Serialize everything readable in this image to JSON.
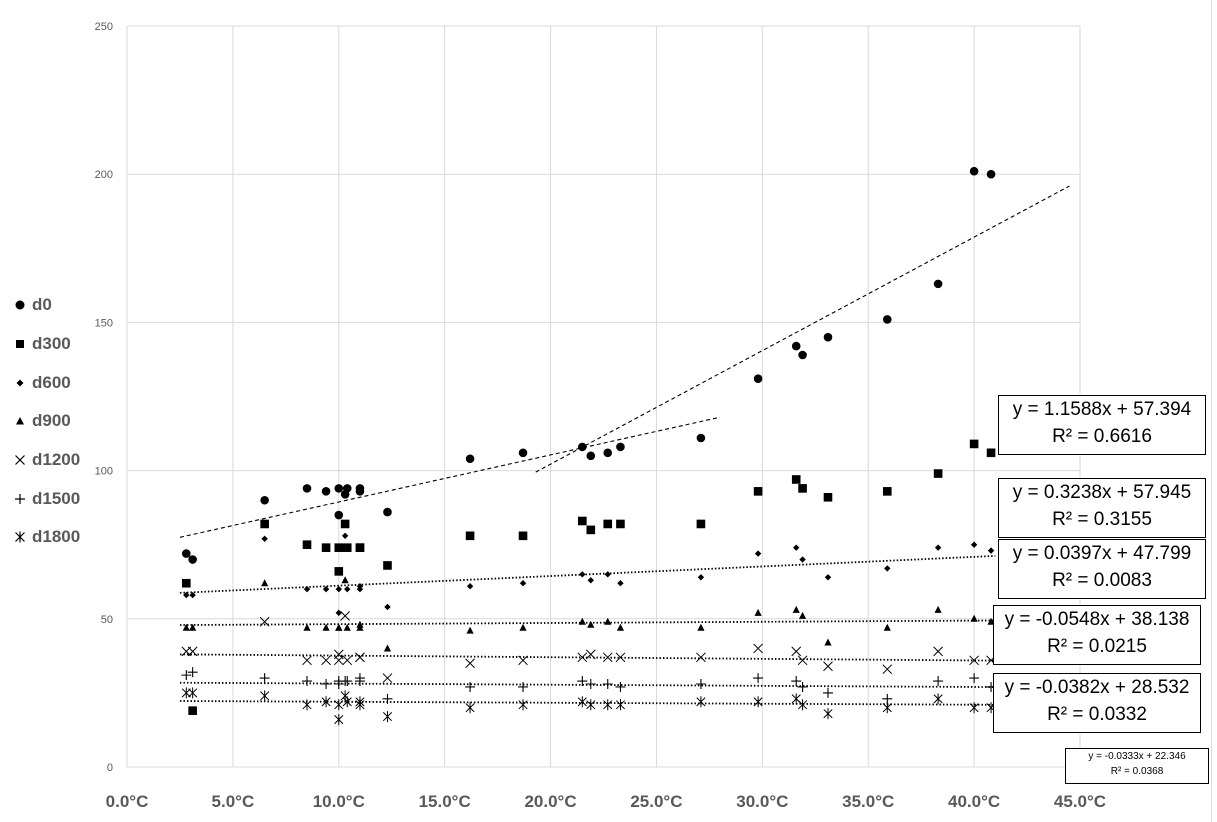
{
  "chart_data": {
    "type": "scatter",
    "xlim": [
      0,
      45
    ],
    "ylim": [
      0,
      250
    ],
    "x_ticks": [
      "0.0°C",
      "5.0°C",
      "10.0°C",
      "15.0°C",
      "20.0°C",
      "25.0°C",
      "30.0°C",
      "35.0°C",
      "40.0°C",
      "45.0°C"
    ],
    "y_ticks": [
      "0",
      "50",
      "100",
      "150",
      "200",
      "250"
    ],
    "grid": true,
    "legend_position": "left",
    "x": [
      2.8,
      3.1,
      6.5,
      8.5,
      9.4,
      10.0,
      10.0,
      10.3,
      10.4,
      11.0,
      11.0,
      12.3,
      16.2,
      18.7,
      21.5,
      21.9,
      22.7,
      23.3,
      27.1,
      29.8,
      31.6,
      31.9,
      33.1,
      35.9,
      38.3,
      40.0,
      40.8
    ],
    "series": [
      {
        "name": "d0",
        "marker": "circle",
        "values": [
          72,
          70,
          90,
          94,
          93,
          85,
          94,
          92,
          94,
          94,
          93,
          86,
          104,
          106,
          108,
          105,
          106,
          108,
          111,
          131,
          142,
          139,
          145,
          151,
          163,
          201,
          200
        ]
      },
      {
        "name": "d300",
        "marker": "square",
        "values": [
          62,
          19,
          82,
          75,
          74,
          66,
          74,
          82,
          74,
          74,
          74,
          68,
          78,
          78,
          83,
          80,
          82,
          82,
          82,
          93,
          97,
          94,
          91,
          93,
          99,
          109,
          106
        ]
      },
      {
        "name": "d600",
        "marker": "diamond",
        "values": [
          58,
          58,
          77,
          60,
          60,
          52,
          60,
          78,
          60,
          61,
          60,
          54,
          61,
          62,
          65,
          63,
          65,
          62,
          64,
          72,
          74,
          70,
          64,
          67,
          74,
          75,
          73
        ]
      },
      {
        "name": "d900",
        "marker": "triangle",
        "values": [
          47,
          47,
          62,
          47,
          47,
          47,
          47,
          63,
          47,
          48,
          47,
          40,
          46,
          47,
          49,
          48,
          49,
          47,
          47,
          52,
          53,
          51,
          42,
          47,
          53,
          50,
          49
        ]
      },
      {
        "name": "d1200",
        "marker": "x",
        "values": [
          39,
          39,
          49,
          36,
          36,
          38,
          36,
          51,
          36,
          37,
          37,
          30,
          35,
          36,
          37,
          38,
          37,
          37,
          37,
          40,
          39,
          36,
          34,
          33,
          39,
          36,
          36
        ]
      },
      {
        "name": "d1500",
        "marker": "plus",
        "values": [
          31,
          32,
          30,
          29,
          28,
          28,
          29,
          29,
          29,
          29,
          30,
          23,
          27,
          27,
          29,
          28,
          28,
          27,
          28,
          30,
          29,
          27,
          25,
          23,
          29,
          30,
          27
        ]
      },
      {
        "name": "d1800",
        "marker": "asterisk",
        "values": [
          25,
          25,
          24,
          21,
          22,
          16,
          21,
          24,
          22,
          21,
          22,
          17,
          20,
          21,
          22,
          21,
          21,
          21,
          22,
          22,
          23,
          21,
          18,
          20,
          23,
          20,
          20
        ]
      }
    ],
    "trendlines": [
      {
        "style": "dashed",
        "x_range": [
          2.5,
          28
        ],
        "y_range": [
          77.5,
          118
        ]
      },
      {
        "style": "dashed",
        "x_range": [
          19.3,
          44.5
        ],
        "y_range": [
          99.5,
          196
        ]
      },
      {
        "style": "dotted",
        "slope": 0.3238,
        "intercept": 57.945,
        "x_range": [
          2.5,
          41
        ]
      },
      {
        "style": "dotted",
        "slope": 0.0397,
        "intercept": 47.799,
        "x_range": [
          2.5,
          41
        ]
      },
      {
        "style": "dotted",
        "slope": -0.0548,
        "intercept": 38.138,
        "x_range": [
          2.5,
          41
        ]
      },
      {
        "style": "dotted",
        "slope": -0.0382,
        "intercept": 28.532,
        "x_range": [
          2.5,
          41
        ]
      },
      {
        "style": "dotted",
        "slope": -0.0333,
        "intercept": 22.346,
        "x_range": [
          2.5,
          41
        ]
      }
    ],
    "equations": [
      {
        "eq": "y = 1.1588x + 57.394",
        "r2": "R² = 0.6616"
      },
      {
        "eq": "y = 0.3238x + 57.945",
        "r2": "R² = 0.3155"
      },
      {
        "eq": "y = 0.0397x + 47.799",
        "r2": "R² = 0.0083"
      },
      {
        "eq": "y = -0.0548x + 38.138",
        "r2": "R² = 0.0215"
      },
      {
        "eq": "y = -0.0382x + 28.532",
        "r2": "R² = 0.0332"
      },
      {
        "eq": "y = -0.0333x + 22.346",
        "r2": "R² = 0.0368"
      }
    ]
  }
}
